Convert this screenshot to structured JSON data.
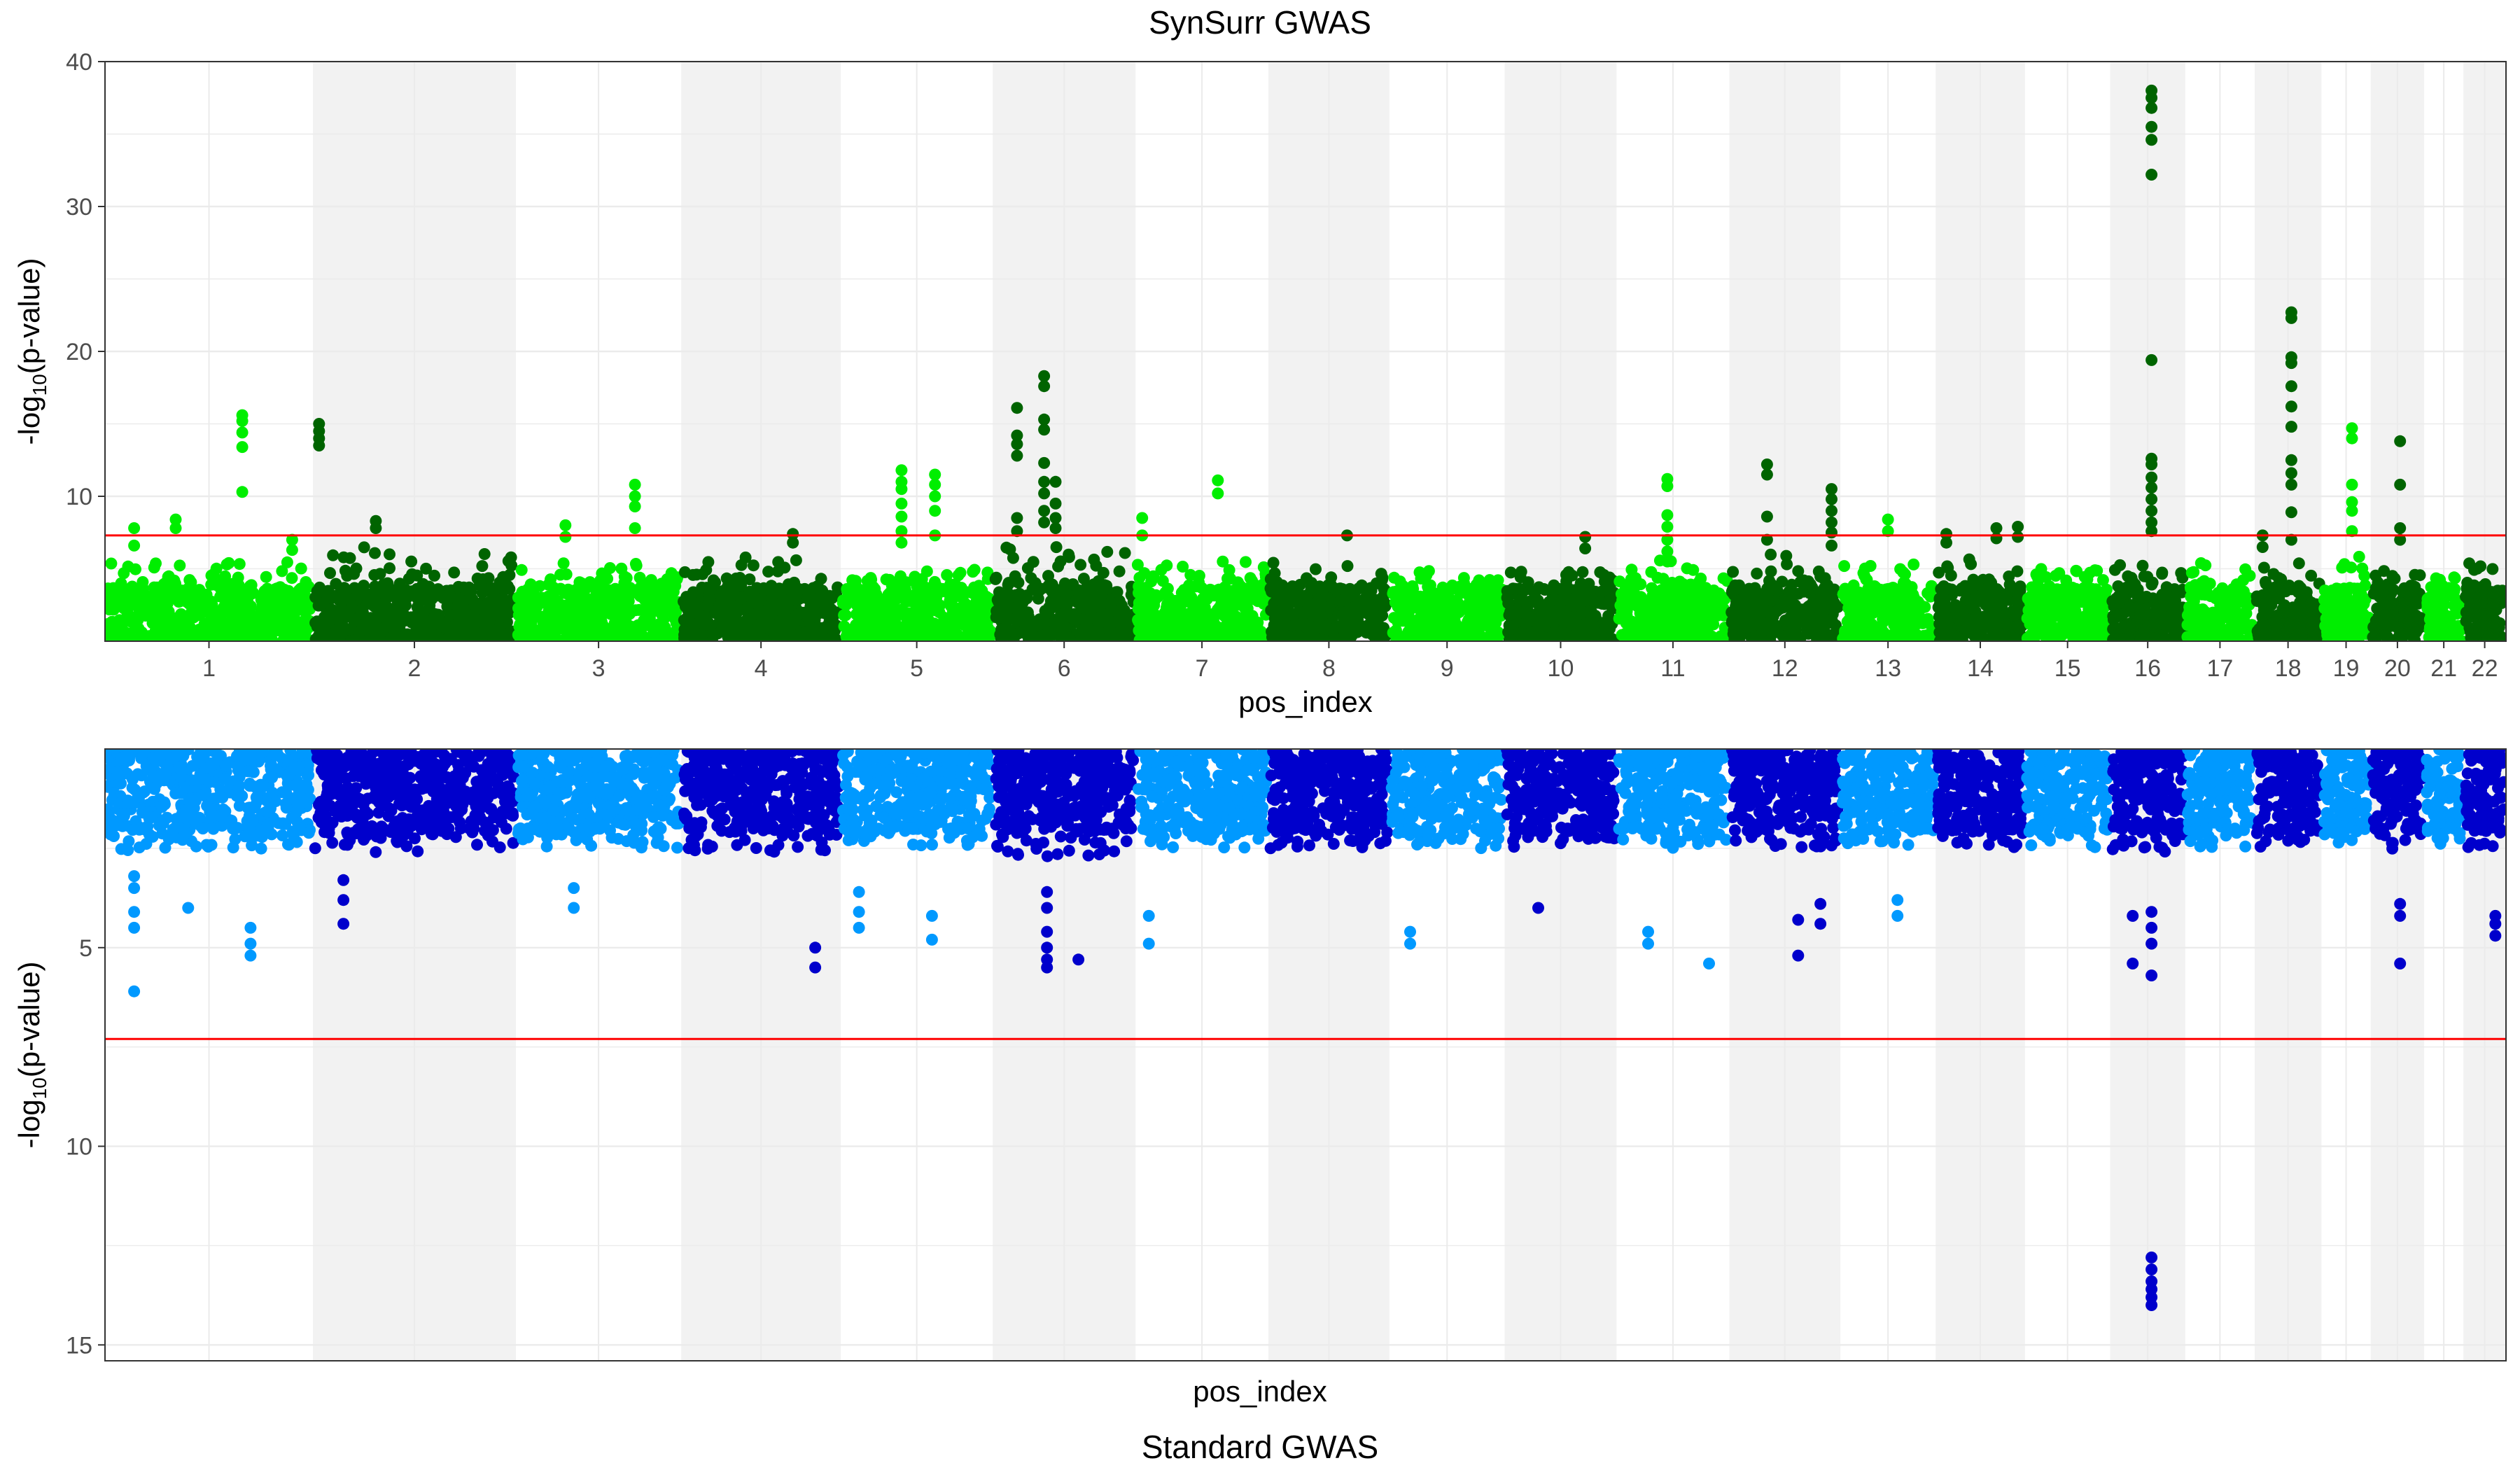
{
  "figure": {
    "top_title": "SynSurr GWAS",
    "bottom_title": "Standard GWAS"
  },
  "chart_data": [
    {
      "type": "scatter",
      "title": "SynSurr GWAS",
      "xlabel": "pos_index",
      "ylabel": "-log10(p-value)",
      "ylabel_parts": {
        "base": "-log",
        "sub": "10",
        "tail": "(p-value)"
      },
      "ylim": [
        0,
        40
      ],
      "yticks": [
        10,
        20,
        30,
        40
      ],
      "y_reversed": false,
      "show_x_tick_labels": true,
      "threshold": 7.3,
      "threshold_color": "#ff0000",
      "colors": {
        "odd": "#00ee00",
        "even": "#006400"
      },
      "band_color": "#f2f2f2",
      "chromosomes": [
        "1",
        "2",
        "3",
        "4",
        "5",
        "6",
        "7",
        "8",
        "9",
        "10",
        "11",
        "12",
        "13",
        "14",
        "15",
        "16",
        "17",
        "18",
        "19",
        "20",
        "21",
        "22"
      ],
      "chromosome_lengths": [
        249,
        243,
        198,
        191,
        182,
        171,
        159,
        145,
        138,
        134,
        135,
        133,
        114,
        107,
        102,
        90,
        83,
        80,
        59,
        64,
        47,
        51
      ],
      "background_max": [
        5.5,
        6.5,
        5.5,
        5.8,
        5.0,
        6.5,
        5.5,
        5.5,
        5.0,
        5.0,
        5.8,
        6.0,
        5.5,
        5.8,
        5.0,
        6.0,
        5.5,
        6.0,
        6.0,
        5.0,
        4.5,
        5.5
      ],
      "peaks": [
        {
          "chr": 1,
          "pos": 0.66,
          "values": [
            15.6,
            15.2,
            14.4,
            13.4,
            10.3
          ]
        },
        {
          "chr": 1,
          "pos": 0.34,
          "values": [
            8.4,
            7.8
          ]
        },
        {
          "chr": 1,
          "pos": 0.14,
          "values": [
            7.8,
            6.6
          ]
        },
        {
          "chr": 1,
          "pos": 0.9,
          "values": [
            7.0,
            6.3
          ]
        },
        {
          "chr": 2,
          "pos": 0.03,
          "values": [
            15.0,
            14.5,
            14.0,
            13.5
          ]
        },
        {
          "chr": 2,
          "pos": 0.31,
          "values": [
            8.3,
            7.8
          ]
        },
        {
          "chr": 3,
          "pos": 0.72,
          "values": [
            10.8,
            10.0,
            9.3,
            7.8
          ]
        },
        {
          "chr": 3,
          "pos": 0.3,
          "values": [
            8.0,
            7.2
          ]
        },
        {
          "chr": 4,
          "pos": 0.7,
          "values": [
            7.4,
            6.8
          ]
        },
        {
          "chr": 5,
          "pos": 0.4,
          "values": [
            11.8,
            11.0,
            10.5,
            9.5,
            8.6,
            7.6,
            6.8
          ]
        },
        {
          "chr": 5,
          "pos": 0.62,
          "values": [
            11.5,
            10.8,
            10.0,
            9.0,
            7.3
          ]
        },
        {
          "chr": 6,
          "pos": 0.36,
          "values": [
            18.3,
            17.6,
            15.3,
            14.6,
            12.3,
            11.0,
            10.2,
            9.0,
            8.2
          ]
        },
        {
          "chr": 6,
          "pos": 0.17,
          "values": [
            16.1,
            14.2,
            13.6,
            12.8,
            8.5,
            7.6
          ]
        },
        {
          "chr": 6,
          "pos": 0.44,
          "values": [
            11.0,
            9.5,
            8.5,
            7.8
          ]
        },
        {
          "chr": 7,
          "pos": 0.62,
          "values": [
            11.1,
            10.2
          ]
        },
        {
          "chr": 7,
          "pos": 0.05,
          "values": [
            8.5,
            7.3
          ]
        },
        {
          "chr": 8,
          "pos": 0.65,
          "values": [
            7.3
          ]
        },
        {
          "chr": 10,
          "pos": 0.72,
          "values": [
            7.2,
            6.4
          ]
        },
        {
          "chr": 11,
          "pos": 0.45,
          "values": [
            11.2,
            10.7,
            8.7,
            7.9,
            7.0,
            6.2,
            5.5
          ]
        },
        {
          "chr": 12,
          "pos": 0.34,
          "values": [
            12.2,
            11.5,
            8.6,
            7.0
          ]
        },
        {
          "chr": 12,
          "pos": 0.92,
          "values": [
            10.5,
            9.8,
            9.0,
            8.2,
            7.5,
            6.6
          ]
        },
        {
          "chr": 13,
          "pos": 0.5,
          "values": [
            8.4,
            7.6
          ]
        },
        {
          "chr": 14,
          "pos": 0.12,
          "values": [
            7.4,
            6.8
          ]
        },
        {
          "chr": 14,
          "pos": 0.68,
          "values": [
            7.8,
            7.1
          ]
        },
        {
          "chr": 14,
          "pos": 0.92,
          "values": [
            7.9,
            7.2
          ]
        },
        {
          "chr": 16,
          "pos": 0.55,
          "values": [
            38.0,
            37.5,
            36.8,
            35.5,
            34.6,
            32.2,
            19.4,
            12.6,
            12.2,
            11.3,
            10.6,
            9.8,
            9.0,
            8.2,
            7.6
          ]
        },
        {
          "chr": 18,
          "pos": 0.55,
          "values": [
            22.7,
            22.3,
            19.6,
            19.2,
            17.6,
            16.2,
            14.8,
            12.5,
            11.6,
            10.8,
            8.9,
            7.0
          ]
        },
        {
          "chr": 18,
          "pos": 0.12,
          "values": [
            7.3,
            6.5
          ]
        },
        {
          "chr": 19,
          "pos": 0.62,
          "values": [
            14.7,
            14.0,
            10.8,
            9.6,
            9.0,
            7.6
          ]
        },
        {
          "chr": 20,
          "pos": 0.55,
          "values": [
            13.8,
            10.8,
            7.8,
            7.0
          ]
        }
      ]
    },
    {
      "type": "scatter",
      "title": "Standard GWAS",
      "xlabel": "pos_index",
      "ylabel": "-log10(p-value)",
      "ylabel_parts": {
        "base": "-log",
        "sub": "10",
        "tail": "(p-value)"
      },
      "ylim": [
        0,
        15.4
      ],
      "yticks": [
        5,
        10,
        15
      ],
      "y_reversed": true,
      "show_x_tick_labels": false,
      "threshold": 7.3,
      "threshold_color": "#ff0000",
      "colors": {
        "odd": "#0099ff",
        "even": "#0000cc"
      },
      "band_color": "#f2f2f2",
      "chromosomes": [
        "1",
        "2",
        "3",
        "4",
        "5",
        "6",
        "7",
        "8",
        "9",
        "10",
        "11",
        "12",
        "13",
        "14",
        "15",
        "16",
        "17",
        "18",
        "19",
        "20",
        "21",
        "22"
      ],
      "chromosome_lengths": [
        249,
        243,
        198,
        191,
        182,
        171,
        159,
        145,
        138,
        134,
        135,
        133,
        114,
        107,
        102,
        90,
        83,
        80,
        59,
        64,
        47,
        51
      ],
      "background_max": [
        2.6,
        2.6,
        2.5,
        2.6,
        2.5,
        2.7,
        2.5,
        2.5,
        2.5,
        2.5,
        2.5,
        2.5,
        2.5,
        2.5,
        2.5,
        2.6,
        2.5,
        2.5,
        2.5,
        2.6,
        2.5,
        2.6
      ],
      "peaks": [
        {
          "chr": 1,
          "pos": 0.14,
          "values": [
            6.1,
            4.5,
            4.1,
            3.5,
            3.2
          ]
        },
        {
          "chr": 1,
          "pos": 0.7,
          "values": [
            5.2,
            4.9,
            4.5
          ]
        },
        {
          "chr": 1,
          "pos": 0.4,
          "values": [
            4.0
          ]
        },
        {
          "chr": 2,
          "pos": 0.15,
          "values": [
            4.4,
            3.8,
            3.3
          ]
        },
        {
          "chr": 3,
          "pos": 0.35,
          "values": [
            4.0,
            3.5
          ]
        },
        {
          "chr": 4,
          "pos": 0.84,
          "values": [
            5.5,
            5.0
          ]
        },
        {
          "chr": 5,
          "pos": 0.12,
          "values": [
            4.5,
            4.1,
            3.6
          ]
        },
        {
          "chr": 5,
          "pos": 0.6,
          "values": [
            4.8,
            4.2
          ]
        },
        {
          "chr": 6,
          "pos": 0.38,
          "values": [
            5.5,
            5.3,
            5.0,
            4.6,
            4.0,
            3.6
          ]
        },
        {
          "chr": 6,
          "pos": 0.6,
          "values": [
            5.3
          ]
        },
        {
          "chr": 7,
          "pos": 0.1,
          "values": [
            4.9,
            4.2
          ]
        },
        {
          "chr": 9,
          "pos": 0.18,
          "values": [
            4.9,
            4.6
          ]
        },
        {
          "chr": 10,
          "pos": 0.3,
          "values": [
            4.0
          ]
        },
        {
          "chr": 11,
          "pos": 0.28,
          "values": [
            4.6,
            4.9
          ]
        },
        {
          "chr": 11,
          "pos": 0.82,
          "values": [
            5.4
          ]
        },
        {
          "chr": 12,
          "pos": 0.62,
          "values": [
            5.2,
            4.3
          ]
        },
        {
          "chr": 12,
          "pos": 0.82,
          "values": [
            4.4,
            3.9
          ]
        },
        {
          "chr": 13,
          "pos": 0.6,
          "values": [
            4.2,
            3.8
          ]
        },
        {
          "chr": 16,
          "pos": 0.55,
          "values": [
            14.0,
            13.8,
            13.6,
            13.4,
            13.1,
            12.8,
            5.7,
            4.9,
            4.5,
            4.1
          ]
        },
        {
          "chr": 16,
          "pos": 0.3,
          "values": [
            5.4,
            4.2
          ]
        },
        {
          "chr": 20,
          "pos": 0.55,
          "values": [
            5.4,
            4.2,
            3.9
          ]
        },
        {
          "chr": 22,
          "pos": 0.75,
          "values": [
            4.7,
            4.4,
            4.2
          ]
        }
      ]
    }
  ]
}
